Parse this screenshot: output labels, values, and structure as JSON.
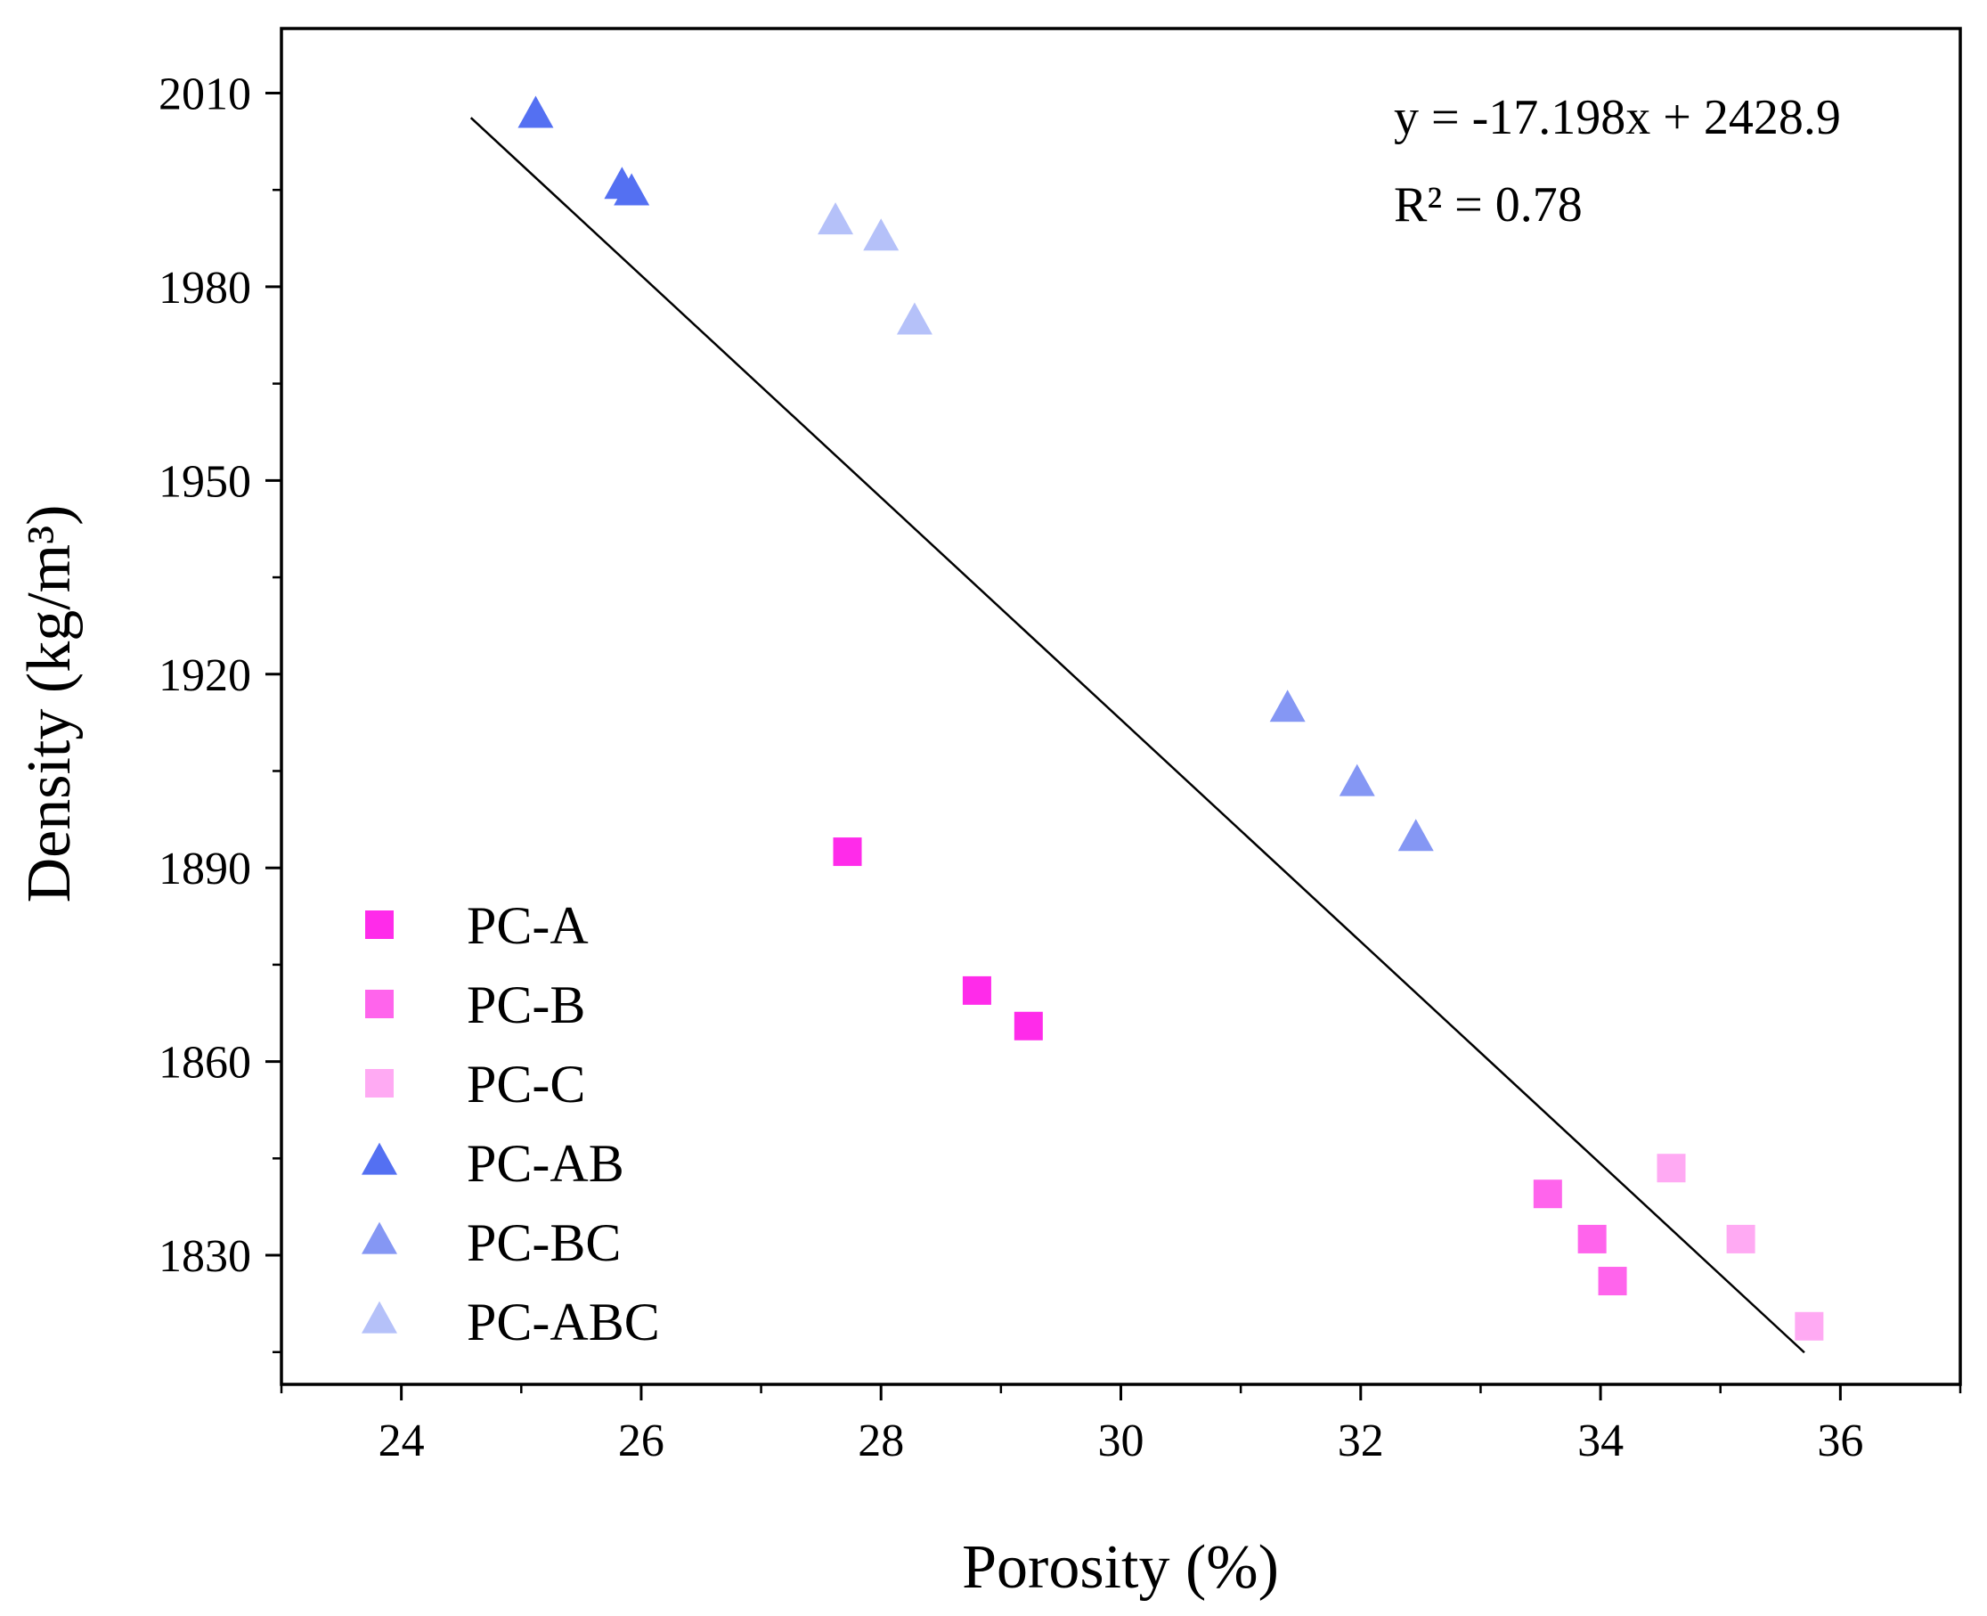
{
  "chart_data": {
    "type": "scatter",
    "title": "",
    "xlabel": "Porosity (%)",
    "ylabel": "Density (kg/m³)",
    "xlim": [
      23,
      37
    ],
    "ylim": [
      1810,
      2020
    ],
    "xticks": [
      24,
      26,
      28,
      30,
      32,
      34,
      36
    ],
    "yticks": [
      1830,
      1860,
      1890,
      1920,
      1950,
      1980,
      2010
    ],
    "grid": false,
    "legend_position": "bottom-left",
    "series": [
      {
        "name": "PC-A",
        "marker": "square",
        "color": "#ff2bea",
        "points": [
          {
            "x": 27.72,
            "y": 1892.5
          },
          {
            "x": 28.8,
            "y": 1871.0
          },
          {
            "x": 29.23,
            "y": 1865.5
          }
        ]
      },
      {
        "name": "PC-B",
        "marker": "square",
        "color": "#ff64ec",
        "points": [
          {
            "x": 33.56,
            "y": 1839.5
          },
          {
            "x": 33.93,
            "y": 1832.5
          },
          {
            "x": 34.1,
            "y": 1826.0
          }
        ]
      },
      {
        "name": "PC-C",
        "marker": "square",
        "color": "#ffaaf3",
        "points": [
          {
            "x": 34.59,
            "y": 1843.5
          },
          {
            "x": 35.17,
            "y": 1832.5
          },
          {
            "x": 35.74,
            "y": 1819.0
          }
        ]
      },
      {
        "name": "PC-AB",
        "marker": "triangle",
        "color": "#5470f2",
        "points": [
          {
            "x": 25.12,
            "y": 2006.5
          },
          {
            "x": 25.84,
            "y": 1995.5
          },
          {
            "x": 25.92,
            "y": 1994.5
          }
        ]
      },
      {
        "name": "PC-BC",
        "marker": "triangle",
        "color": "#8597f4",
        "points": [
          {
            "x": 31.39,
            "y": 1914.5
          },
          {
            "x": 31.97,
            "y": 1903.0
          },
          {
            "x": 32.46,
            "y": 1894.5
          }
        ]
      },
      {
        "name": "PC-ABC",
        "marker": "triangle",
        "color": "#b5c1f9",
        "points": [
          {
            "x": 27.62,
            "y": 1990.0
          },
          {
            "x": 28.0,
            "y": 1987.5
          },
          {
            "x": 28.28,
            "y": 1974.5
          }
        ]
      }
    ],
    "trendline": {
      "slope": -17.198,
      "intercept": 2428.9,
      "x_start": 24.58,
      "x_end": 35.7,
      "color": "#000000"
    },
    "annotations": [
      "y = -17.198x + 2428.9",
      "R² = 0.78"
    ]
  }
}
